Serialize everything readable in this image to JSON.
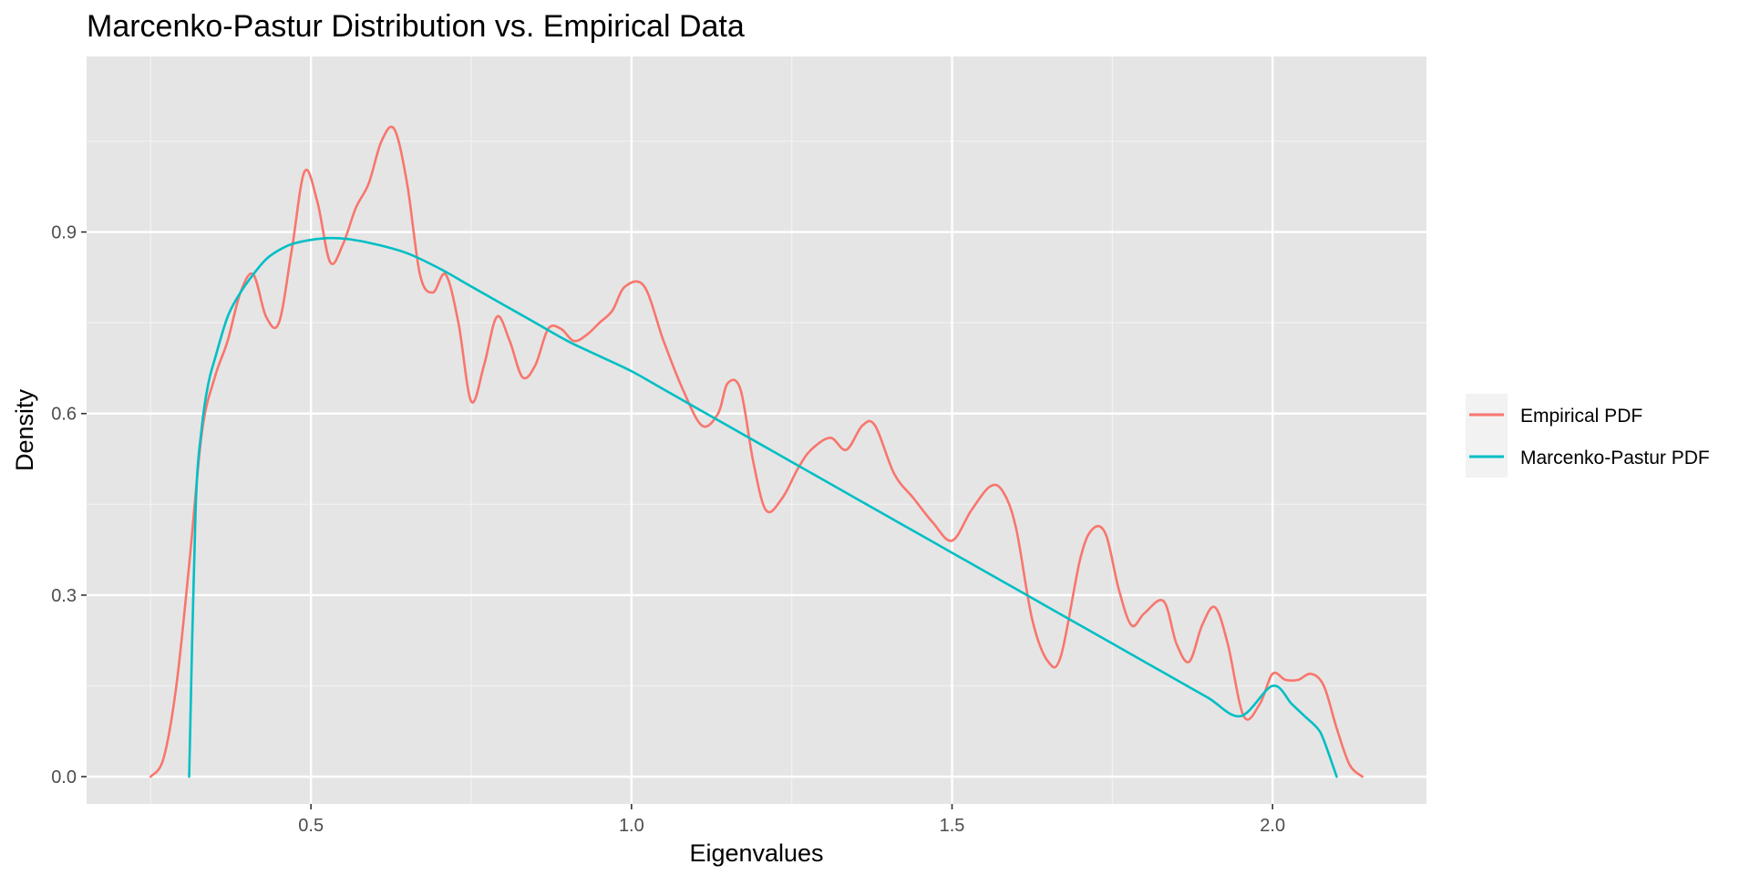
{
  "chart_data": {
    "type": "line",
    "title": "Marcenko-Pastur Distribution vs. Empirical Data",
    "xlabel": "Eigenvalues",
    "ylabel": "Density",
    "xlim": [
      0.15,
      2.24
    ],
    "ylim": [
      -0.045,
      1.19
    ],
    "x_ticks": [
      0.5,
      1.0,
      1.5,
      2.0
    ],
    "x_tick_labels": [
      "0.5",
      "1.0",
      "1.5",
      "2.0"
    ],
    "y_ticks": [
      0.0,
      0.3,
      0.6,
      0.9
    ],
    "y_tick_labels": [
      "0.0",
      "0.3",
      "0.6",
      "0.9"
    ],
    "grid": true,
    "legend_position": "right",
    "series": [
      {
        "name": "Empirical PDF",
        "color": "#f8766d",
        "x": [
          0.25,
          0.27,
          0.29,
          0.31,
          0.33,
          0.35,
          0.37,
          0.39,
          0.41,
          0.43,
          0.45,
          0.47,
          0.49,
          0.51,
          0.53,
          0.55,
          0.57,
          0.59,
          0.61,
          0.63,
          0.65,
          0.67,
          0.69,
          0.71,
          0.73,
          0.75,
          0.77,
          0.79,
          0.81,
          0.83,
          0.85,
          0.87,
          0.89,
          0.91,
          0.93,
          0.95,
          0.97,
          0.99,
          1.02,
          1.05,
          1.08,
          1.11,
          1.135,
          1.15,
          1.17,
          1.19,
          1.21,
          1.235,
          1.26,
          1.28,
          1.31,
          1.335,
          1.36,
          1.38,
          1.41,
          1.44,
          1.47,
          1.5,
          1.53,
          1.56,
          1.58,
          1.6,
          1.625,
          1.65,
          1.67,
          1.7,
          1.72,
          1.74,
          1.76,
          1.78,
          1.8,
          1.83,
          1.85,
          1.87,
          1.89,
          1.91,
          1.93,
          1.955,
          1.98,
          2.0,
          2.02,
          2.04,
          2.06,
          2.08,
          2.1,
          2.12,
          2.14
        ],
        "y": [
          0.0,
          0.03,
          0.15,
          0.35,
          0.57,
          0.66,
          0.72,
          0.8,
          0.83,
          0.76,
          0.75,
          0.87,
          1.0,
          0.95,
          0.85,
          0.88,
          0.94,
          0.98,
          1.05,
          1.07,
          0.98,
          0.83,
          0.8,
          0.83,
          0.75,
          0.62,
          0.68,
          0.76,
          0.72,
          0.66,
          0.68,
          0.74,
          0.74,
          0.72,
          0.73,
          0.75,
          0.77,
          0.81,
          0.81,
          0.72,
          0.64,
          0.58,
          0.6,
          0.65,
          0.64,
          0.52,
          0.44,
          0.46,
          0.51,
          0.54,
          0.56,
          0.54,
          0.58,
          0.58,
          0.5,
          0.46,
          0.42,
          0.39,
          0.44,
          0.48,
          0.47,
          0.41,
          0.26,
          0.19,
          0.2,
          0.36,
          0.41,
          0.4,
          0.31,
          0.25,
          0.27,
          0.29,
          0.22,
          0.19,
          0.25,
          0.28,
          0.22,
          0.1,
          0.12,
          0.17,
          0.16,
          0.16,
          0.17,
          0.15,
          0.08,
          0.02,
          0.0
        ]
      },
      {
        "name": "Marcenko-Pastur PDF",
        "color": "#00bfc4",
        "x": [
          0.31,
          0.32,
          0.33,
          0.34,
          0.35,
          0.37,
          0.39,
          0.41,
          0.43,
          0.45,
          0.47,
          0.5,
          0.53,
          0.56,
          0.6,
          0.65,
          0.7,
          0.75,
          0.8,
          0.85,
          0.9,
          0.95,
          1.0,
          1.05,
          1.1,
          1.15,
          1.2,
          1.25,
          1.3,
          1.35,
          1.4,
          1.45,
          1.5,
          1.55,
          1.6,
          1.65,
          1.7,
          1.75,
          1.8,
          1.85,
          1.9,
          1.95,
          2.0,
          2.03,
          2.05,
          2.07,
          2.08,
          2.1
        ],
        "y": [
          0.0,
          0.44,
          0.58,
          0.65,
          0.69,
          0.76,
          0.8,
          0.83,
          0.855,
          0.87,
          0.88,
          0.887,
          0.89,
          0.888,
          0.88,
          0.865,
          0.84,
          0.81,
          0.78,
          0.75,
          0.72,
          0.695,
          0.67,
          0.64,
          0.61,
          0.58,
          0.55,
          0.52,
          0.49,
          0.46,
          0.43,
          0.4,
          0.37,
          0.34,
          0.31,
          0.28,
          0.25,
          0.22,
          0.19,
          0.16,
          0.13,
          0.1,
          0.15,
          0.12,
          0.1,
          0.08,
          0.06,
          0.0
        ]
      }
    ]
  }
}
